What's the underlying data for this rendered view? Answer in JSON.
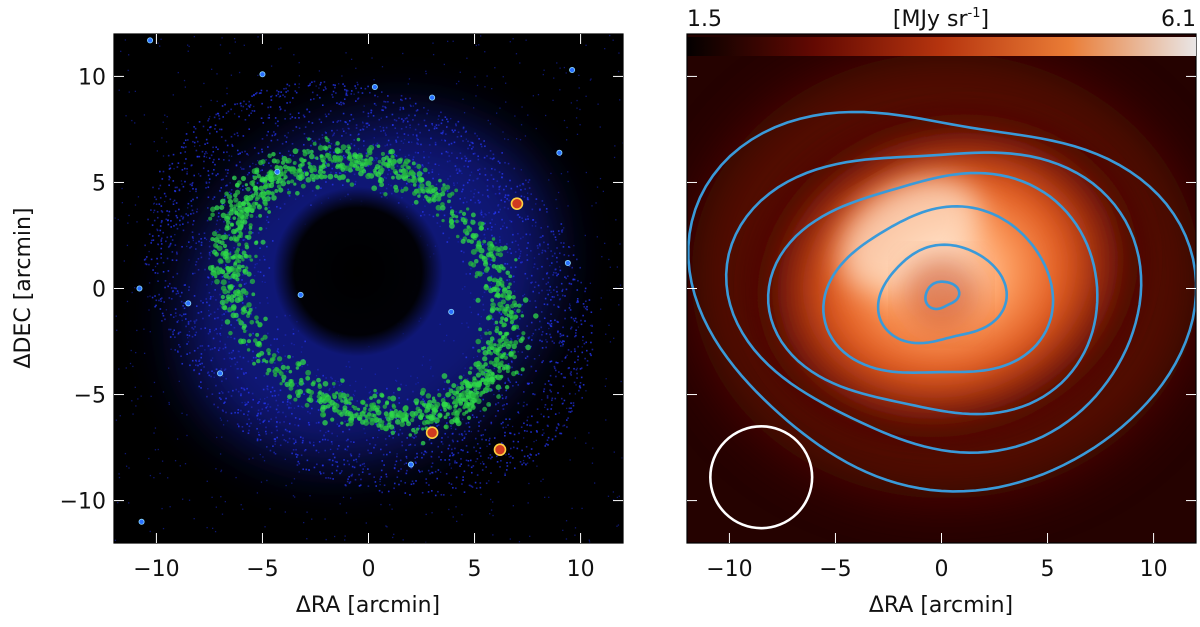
{
  "chart_data": [
    {
      "type": "heatmap",
      "title": "",
      "xlabel": "ΔRA [arcmin]",
      "ylabel": "ΔDEC [arcmin]",
      "xlim": [
        -12,
        12
      ],
      "ylim": [
        -12,
        12
      ],
      "xticks": [
        -10,
        -5,
        0,
        5,
        10
      ],
      "yticks": [
        -10,
        -5,
        0,
        5,
        10
      ],
      "colormap": "black-blue-green",
      "colors": {
        "background": "#000000",
        "faint": "#1a2bd8",
        "bright": "#2fd84a"
      },
      "ring": {
        "center": [
          0,
          0
        ],
        "semi_major": 7.0,
        "semi_minor": 5.5,
        "tilt_deg": -35,
        "hole_center": [
          -0.5,
          0.8
        ],
        "hole_radius": 3.2
      },
      "stars": [
        {
          "x": 7.0,
          "y": 4.0
        },
        {
          "x": 3.0,
          "y": -6.8
        },
        {
          "x": 6.2,
          "y": -7.6
        },
        {
          "x": 9.6,
          "y": 10.3
        },
        {
          "x": -10.8,
          "y": 0.0
        },
        {
          "x": 9.0,
          "y": 6.4
        },
        {
          "x": 3.9,
          "y": -1.1
        },
        {
          "x": -3.2,
          "y": -0.3
        },
        {
          "x": 9.4,
          "y": 1.2
        },
        {
          "x": -10.7,
          "y": -11.0
        },
        {
          "x": -10.3,
          "y": 11.7
        },
        {
          "x": 2.0,
          "y": -8.3
        },
        {
          "x": -5.0,
          "y": 10.1
        },
        {
          "x": 3.0,
          "y": 9.0
        },
        {
          "x": -8.5,
          "y": -0.7
        },
        {
          "x": -4.3,
          "y": 5.5
        },
        {
          "x": 0.3,
          "y": 9.5
        },
        {
          "x": -7.0,
          "y": -4.0
        }
      ]
    },
    {
      "type": "heatmap",
      "title": "",
      "xlabel": "ΔRA [arcmin]",
      "ylabel": "",
      "xlim": [
        -12,
        12
      ],
      "ylim": [
        -12,
        12
      ],
      "xticks": [
        -10,
        -5,
        0,
        5,
        10
      ],
      "yticks": [
        -10,
        -5,
        0,
        5,
        10
      ],
      "colormap": "black-red-orange-white",
      "colorbar": {
        "min": "1.5",
        "max": "6.1",
        "unit_base": "[MJy sr",
        "unit_exp": "-1",
        "unit_close": "]",
        "vmin": 1.5,
        "vmax": 6.1
      },
      "colors": {
        "contour": "#3a9ad9",
        "beam": "#ffffff"
      },
      "emission_peak": [
        -1.5,
        2.5
      ],
      "beam": {
        "x": -8.5,
        "y": -8.9,
        "radius_arcmin": 2.4
      },
      "contour_levels": [
        {
          "radius": 0.7
        },
        {
          "radius": 2.6
        },
        {
          "radius": 4.6
        },
        {
          "radius": 6.6
        },
        {
          "radius": 8.3
        },
        {
          "radius": 10.2
        }
      ]
    }
  ]
}
